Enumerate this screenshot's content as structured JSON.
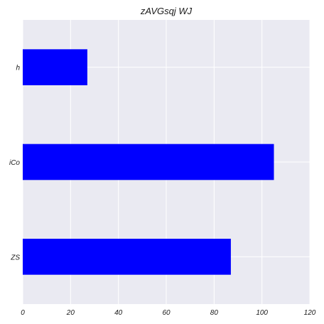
{
  "chart_data": {
    "type": "bar",
    "orientation": "horizontal",
    "title": "zAVGsqj WJ",
    "xlabel": "",
    "ylabel": "",
    "categories": [
      "ZS",
      "iCo",
      "h"
    ],
    "values": [
      87,
      105,
      27
    ],
    "xlim": [
      0,
      120
    ],
    "xticks": [
      0,
      20,
      40,
      60,
      80,
      100,
      120
    ],
    "grid": true,
    "legend": "none",
    "bar_color": "#0000ff",
    "background_color": "#eaeaf2",
    "grid_color": "#ffffff"
  }
}
